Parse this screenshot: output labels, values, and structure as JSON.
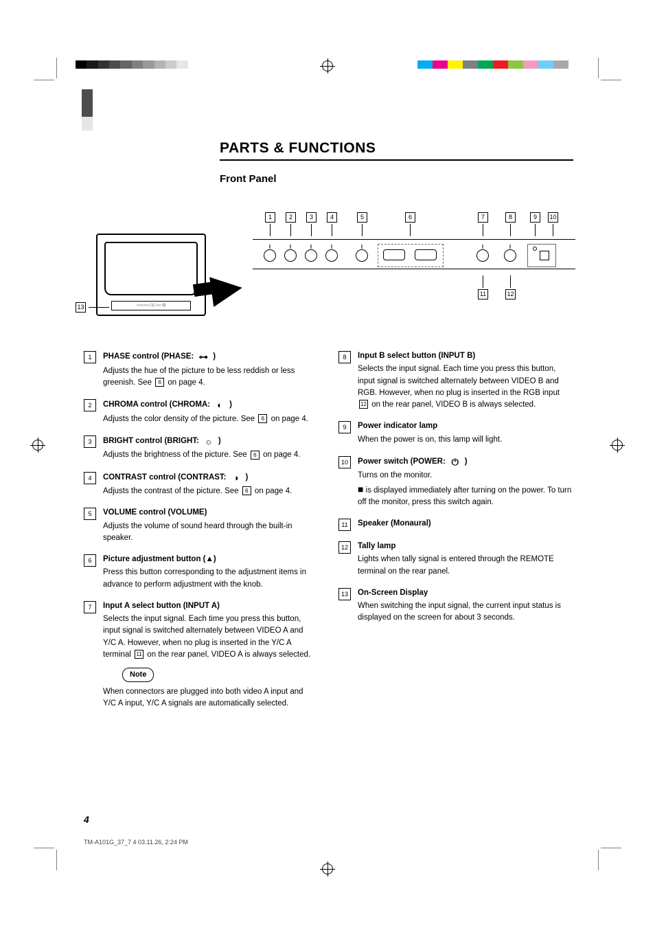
{
  "page": {
    "title": "PARTS & FUNCTIONS",
    "subtitle": "Front Panel",
    "page_number": "4",
    "footer": "TM-A101G_37_7    4                                                   03.11.26, 2:24 PM"
  },
  "colors": {
    "grayscale": [
      "#000000",
      "#1a1a1a",
      "#333333",
      "#4d4d4d",
      "#666666",
      "#808080",
      "#999999",
      "#b3b3b3",
      "#cccccc",
      "#e6e6e6",
      "#ffffff"
    ],
    "colorbar": [
      "#00aeef",
      "#ec008c",
      "#fff200",
      "#808080",
      "#00a651",
      "#ed1c24",
      "#8dc63f",
      "#f49ac1",
      "#6dcff6",
      "#a7a9ac"
    ],
    "side_tab": [
      {
        "h": 40,
        "c": "#4d4d4d"
      },
      {
        "h": 20,
        "c": "#e6e6e6"
      }
    ]
  },
  "diagram": {
    "callouts_top": [
      "1",
      "2",
      "3",
      "4",
      "5",
      "6",
      "7",
      "8",
      "9",
      "10"
    ],
    "callouts_bottom": [
      "11",
      "12"
    ],
    "monitor_callout": "13"
  },
  "items_left": [
    {
      "n": "1",
      "head": "PHASE control (PHASE: ",
      "glyph": "⊶",
      "head2": ")",
      "desc": "Adjusts the hue of the picture to be less reddish or less greenish. See ",
      "ref": "6",
      "desc2": " on page 4."
    },
    {
      "n": "2",
      "head": "CHROMA control (CHROMA: ",
      "glyph": "◐",
      "head2": ")",
      "desc": "Adjusts the color density of the picture. See ",
      "ref": "6",
      "desc2": " on page 4."
    },
    {
      "n": "3",
      "head": "BRIGHT control (BRIGHT: ",
      "glyph": "☼",
      "head2": ")",
      "desc": "Adjusts the brightness of the picture. See ",
      "ref": "6",
      "desc2": " on page 4."
    },
    {
      "n": "4",
      "head": "CONTRAST control (CONTRAST: ",
      "glyph": "◑",
      "head2": ")",
      "desc": "Adjusts the contrast of the picture. See ",
      "ref": "6",
      "desc2": " on page 4."
    },
    {
      "n": "5",
      "head": "VOLUME control (VOLUME)",
      "desc": "Adjusts the volume of sound heard through the built-in speaker."
    },
    {
      "n": "6",
      "head": "Picture adjustment button (▲)",
      "desc": "Press this button corresponding to the adjustment items in advance to perform adjustment with the knob."
    },
    {
      "n": "7",
      "head": "Input A select button (INPUT A)",
      "desc": "Selects the input signal. Each time you press this button, input signal is switched alternately between VIDEO A and Y/C A. However, when no plug is inserted in the Y/C A terminal ",
      "ref": "11",
      "desc2": " on the rear panel, VIDEO A is always selected.",
      "note": "Note",
      "note_text": "When connectors are plugged into both video A input and Y/C A input, Y/C A signals are automatically selected."
    }
  ],
  "items_right": [
    {
      "n": "8",
      "head": "Input B select button (INPUT B)",
      "desc": "Selects the input signal. Each time you press this button, input signal is switched alternately between VIDEO B and RGB. However, when no plug is inserted in the RGB input ",
      "ref": "12",
      "desc2": " on the rear panel, VIDEO B is always selected."
    },
    {
      "n": "9",
      "head": "Power indicator lamp",
      "desc": "When the power is on, this lamp will light."
    },
    {
      "n": "10",
      "head": "Power switch (POWER: ",
      "glyph": "⏻",
      "head2": ")",
      "desc": "Turns on the monitor. ",
      "desc_cont": " is displayed immediately after turning on the power. To turn off the monitor, press this switch again.",
      "icon_note": "■"
    },
    {
      "n": "11",
      "head": "Speaker (Monaural)"
    },
    {
      "n": "12",
      "head": "Tally lamp",
      "desc": "Lights when tally signal is entered through the REMOTE terminal on the rear panel."
    },
    {
      "n": "13",
      "head": "On-Screen Display",
      "desc": "When switching the input signal, the current input status is displayed on the screen for about 3 seconds."
    }
  ]
}
